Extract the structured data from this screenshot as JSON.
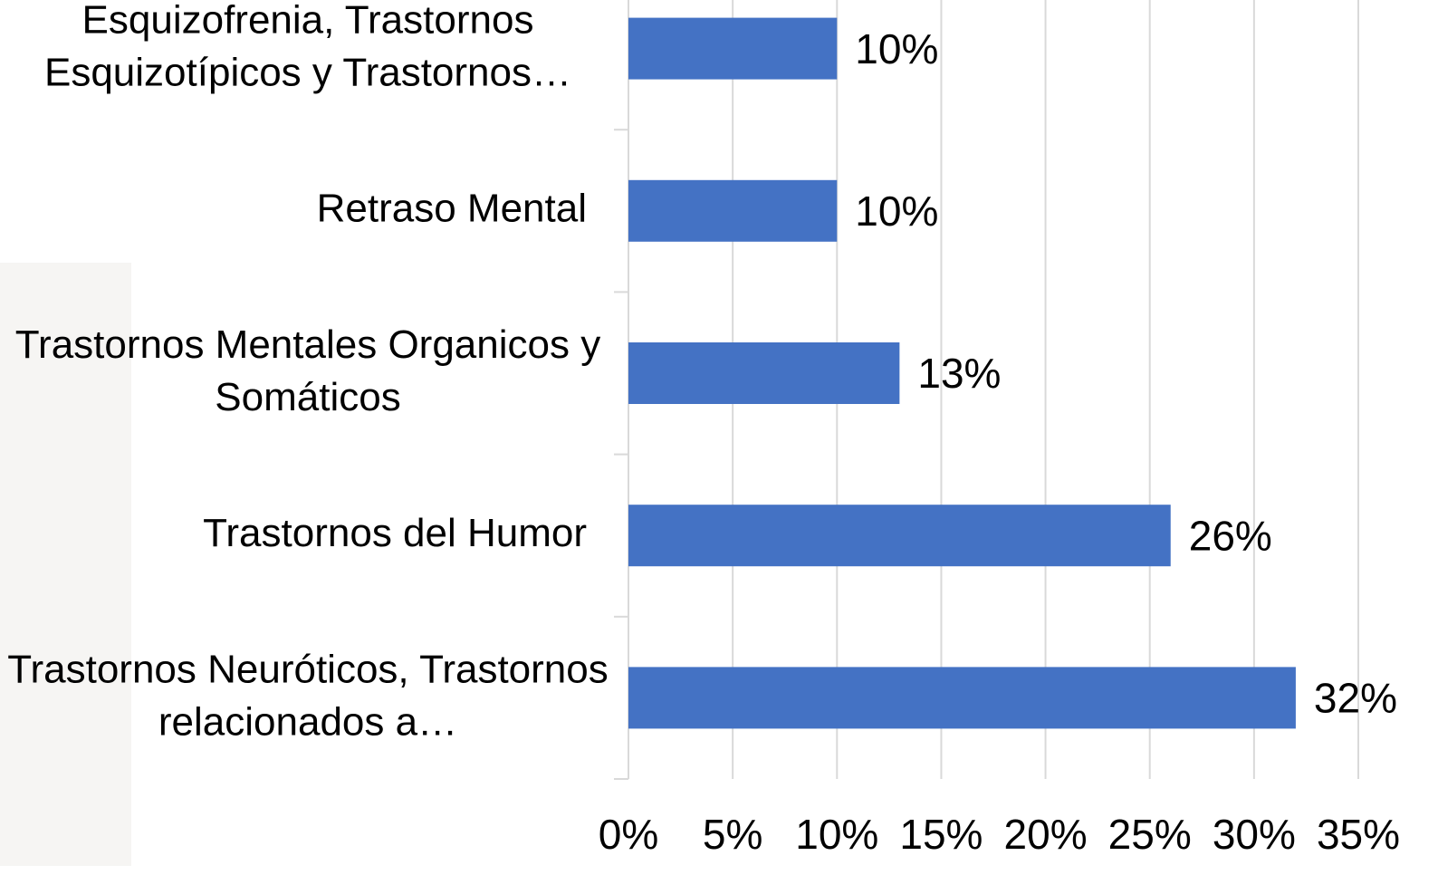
{
  "chart_data": {
    "type": "bar",
    "orientation": "horizontal",
    "categories": [
      "Esquizofrenia, Trastornos Esquizotípicos y Trastornos…",
      "Retraso Mental",
      "Trastornos Mentales Organicos y Somáticos",
      "Trastornos del Humor",
      "Trastornos Neuróticos, Trastornos relacionados a…"
    ],
    "values": [
      10,
      10,
      13,
      26,
      32
    ],
    "value_labels": [
      "10%",
      "10%",
      "13%",
      "26%",
      "32%"
    ],
    "color": "#4472c4",
    "xlim": [
      0,
      35
    ],
    "xticks": [
      {
        "value": 0,
        "label": "0%"
      },
      {
        "value": 5,
        "label": "5%"
      },
      {
        "value": 10,
        "label": "10%"
      },
      {
        "value": 15,
        "label": "15%"
      },
      {
        "value": 20,
        "label": "20%"
      },
      {
        "value": 25,
        "label": "25%"
      },
      {
        "value": 30,
        "label": "30%"
      },
      {
        "value": 35,
        "label": "35%"
      }
    ],
    "grid": true
  }
}
